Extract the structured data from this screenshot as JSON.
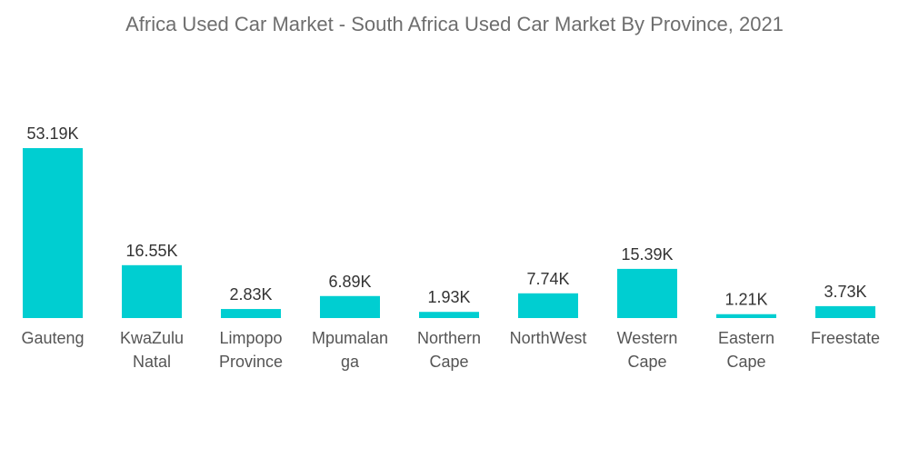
{
  "chart_data": {
    "type": "bar",
    "title": "Africa Used Car Market - South Africa Used Car Market By Province, 2021",
    "categories": [
      "Gauteng",
      "KwaZulu\nNatal",
      "Limpopo\nProvince",
      "Mpumalan\nga",
      "Northern\nCape",
      "NorthWest",
      "Western\nCape",
      "Eastern\nCape",
      "Freestate"
    ],
    "values": [
      53.19,
      16.55,
      2.83,
      6.89,
      1.93,
      7.74,
      15.39,
      1.21,
      3.73
    ],
    "data_labels": [
      "53.19K",
      "16.55K",
      "2.83K",
      "6.89K",
      "1.93K",
      "7.74K",
      "15.39K",
      "1.21K",
      "3.73K"
    ],
    "unit": "K",
    "xlabel": "",
    "ylabel": "",
    "grid": false,
    "y_axis_visible": false,
    "bar_color": "#00ced1"
  }
}
